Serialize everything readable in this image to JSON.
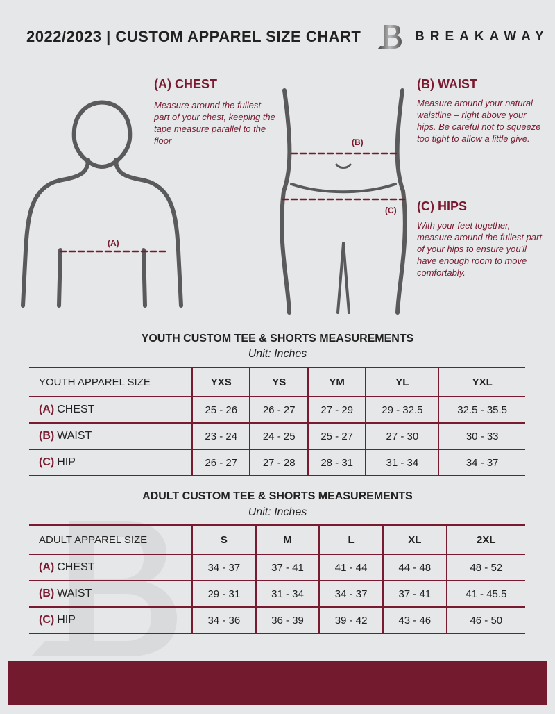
{
  "header": {
    "title": "2022/2023  |  CUSTOM APPAREL SIZE CHART",
    "brand": "BREAKAWAY",
    "logo_letter": "B"
  },
  "measurements": [
    {
      "heading": "(A) CHEST",
      "marker": "(A)",
      "description": "Measure around the fullest part of your chest, keeping the tape measure parallel to the floor"
    },
    {
      "heading": "(B) WAIST",
      "marker": "(B)",
      "description": "Measure around your natural waistline – right above your hips. Be careful not to squeeze too tight to allow a little give."
    },
    {
      "heading": "(C) HIPS",
      "marker": "(C)",
      "description": "With your feet together, measure around the fullest part of your hips to ensure you'll have enough room to move comfortably."
    }
  ],
  "youth": {
    "title": "YOUTH CUSTOM TEE & SHORTS MEASUREMENTS",
    "unit": "Unit: Inches",
    "header": [
      "YOUTH APPAREL SIZE",
      "YXS",
      "YS",
      "YM",
      "YL",
      "YXL"
    ],
    "rows": [
      {
        "code": "(A)",
        "name": "CHEST",
        "values": [
          "25 - 26",
          "26 - 27",
          "27 - 29",
          "29 - 32.5",
          "32.5 - 35.5"
        ]
      },
      {
        "code": "(B)",
        "name": "WAIST",
        "values": [
          "23 - 24",
          "24 - 25",
          "25 - 27",
          "27 - 30",
          "30 - 33"
        ]
      },
      {
        "code": "(C)",
        "name": "HIP",
        "values": [
          "26 - 27",
          "27 - 28",
          "28 - 31",
          "31 - 34",
          "34 - 37"
        ]
      }
    ]
  },
  "adult": {
    "title": "ADULT CUSTOM TEE & SHORTS MEASUREMENTS",
    "unit": "Unit: Inches",
    "header": [
      "ADULT APPAREL SIZE",
      "S",
      "M",
      "L",
      "XL",
      "2XL"
    ],
    "rows": [
      {
        "code": "(A)",
        "name": "CHEST",
        "values": [
          "34 - 37",
          "37 - 41",
          "41 - 44",
          "44 - 48",
          "48 - 52"
        ]
      },
      {
        "code": "(B)",
        "name": "WAIST",
        "values": [
          "29 - 31",
          "31 - 34",
          "34 - 37",
          "37 - 41",
          "41 - 45.5"
        ]
      },
      {
        "code": "(C)",
        "name": "HIP",
        "values": [
          "34 - 36",
          "36 - 39",
          "39 - 42",
          "43 - 46",
          "46 - 50"
        ]
      }
    ]
  },
  "colors": {
    "accent": "#7a1a30",
    "background": "#e6e7e9",
    "footer": "#731a2e"
  }
}
